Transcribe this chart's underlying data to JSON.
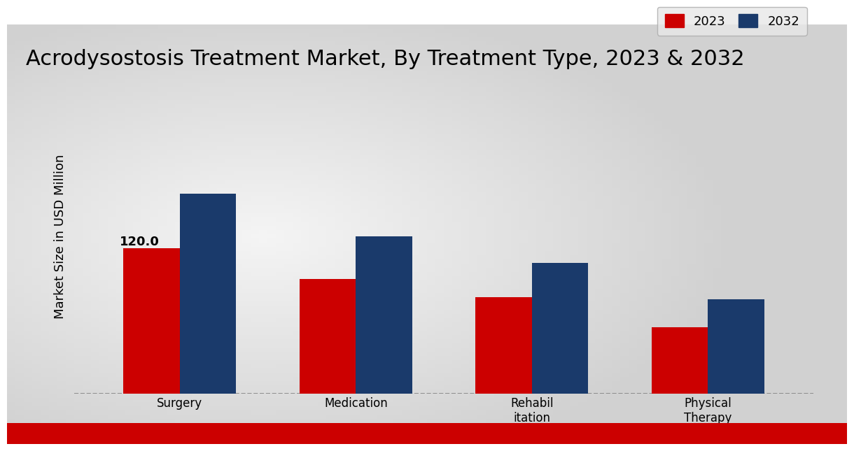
{
  "title": "Acrodysostosis Treatment Market, By Treatment Type, 2023 & 2032",
  "ylabel": "Market Size in USD Million",
  "categories": [
    "Surgery",
    "Medication",
    "Rehabil\nitation",
    "Physical\nTherapy"
  ],
  "values_2023": [
    120.0,
    95.0,
    80.0,
    55.0
  ],
  "values_2032": [
    165.0,
    130.0,
    108.0,
    78.0
  ],
  "color_2023": "#cc0000",
  "color_2032": "#1a3a6b",
  "bar_width": 0.32,
  "ylim": [
    0,
    260
  ],
  "title_fontsize": 22,
  "label_fontsize": 13,
  "tick_fontsize": 12,
  "legend_labels": [
    "2023",
    "2032"
  ],
  "annotation_value": "120.0",
  "bg_light": "#e0e0e0",
  "bg_white": "#f5f5f5",
  "red_strip_color": "#cc0000",
  "legend_fontsize": 13
}
